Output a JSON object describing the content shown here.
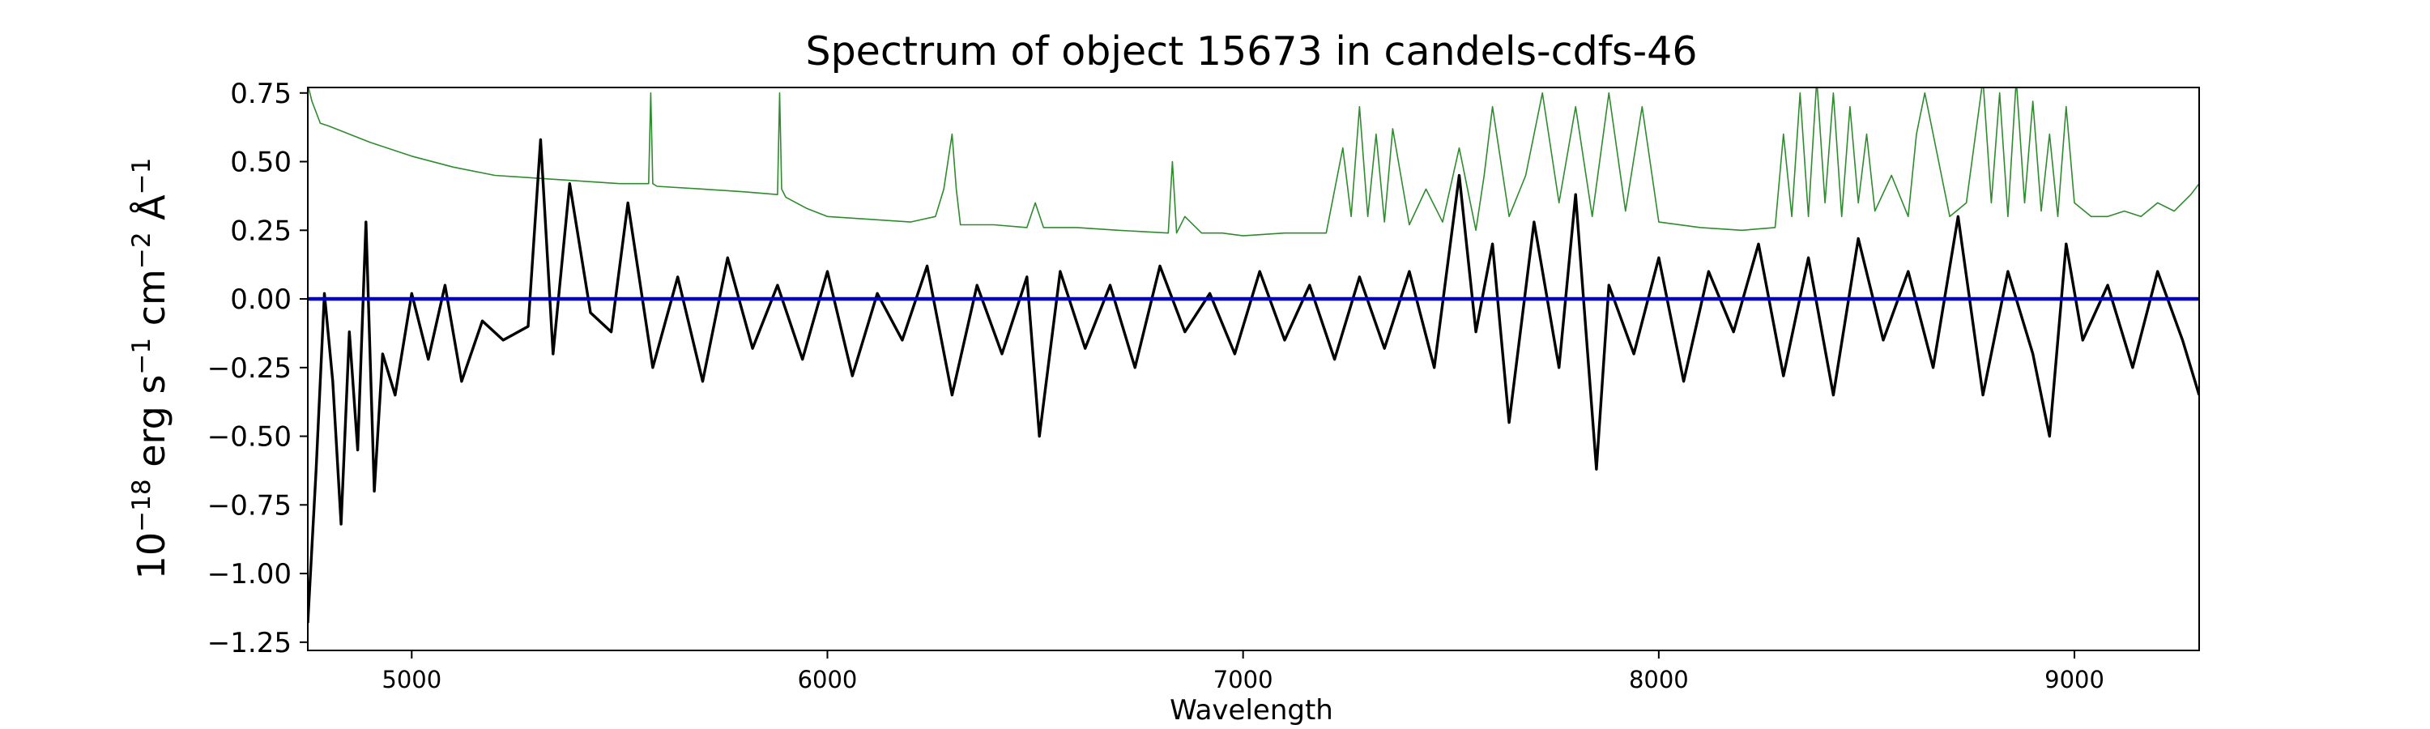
{
  "chart_data": {
    "type": "line",
    "title": "Spectrum of object 15673 in candels-cdfs-46",
    "xlabel": "Wavelength",
    "ylabel": {
      "base": "10",
      "exponent": "−18",
      "units": " erg s",
      "s_exp": "−1",
      "cm": " cm",
      "cm_exp": "−2",
      "angstrom": " Å",
      "a_exp": "−1"
    },
    "xlim": [
      4750,
      9300
    ],
    "ylim": [
      -1.28,
      0.77
    ],
    "xticks": [
      5000,
      6000,
      7000,
      8000,
      9000
    ],
    "xtick_labels": [
      "5000",
      "6000",
      "7000",
      "8000",
      "9000"
    ],
    "yticks": [
      -1.25,
      -1.0,
      -0.75,
      -0.5,
      -0.25,
      0.0,
      0.25,
      0.5,
      0.75
    ],
    "ytick_labels": [
      "−1.25",
      "−1.00",
      "−0.75",
      "−0.50",
      "−0.25",
      "0.00",
      "0.25",
      "0.50",
      "0.75"
    ],
    "grid": false,
    "colors": {
      "flux": "#000000",
      "error": "#2e8b2e",
      "zero": "#0000cc"
    },
    "series": [
      {
        "x": [
          4750,
          4770,
          4790,
          4810,
          4830,
          4850,
          4870,
          4890,
          4910,
          4930,
          4960,
          5000,
          5040,
          5080,
          5120,
          5170,
          5220,
          5280,
          5310,
          5340,
          5380,
          5430,
          5480,
          5520,
          5580,
          5640,
          5700,
          5760,
          5820,
          5880,
          5940,
          6000,
          6060,
          6120,
          6180,
          6240,
          6300,
          6360,
          6420,
          6480,
          6510,
          6560,
          6620,
          6680,
          6740,
          6800,
          6860,
          6920,
          6980,
          7040,
          7100,
          7160,
          7220,
          7280,
          7340,
          7400,
          7460,
          7520,
          7560,
          7600,
          7640,
          7700,
          7760,
          7800,
          7850,
          7880,
          7940,
          8000,
          8060,
          8120,
          8180,
          8240,
          8300,
          8360,
          8420,
          8480,
          8540,
          8600,
          8660,
          8720,
          8780,
          8840,
          8900,
          8940,
          8980,
          9020,
          9080,
          9140,
          9200,
          9260,
          9300
        ],
        "y": [
          -1.18,
          -0.62,
          0.02,
          -0.3,
          -0.82,
          -0.12,
          -0.55,
          0.28,
          -0.7,
          -0.2,
          -0.35,
          0.02,
          -0.22,
          0.05,
          -0.3,
          -0.08,
          -0.15,
          -0.1,
          0.58,
          -0.2,
          0.42,
          -0.05,
          -0.12,
          0.35,
          -0.25,
          0.08,
          -0.3,
          0.15,
          -0.18,
          0.05,
          -0.22,
          0.1,
          -0.28,
          0.02,
          -0.15,
          0.12,
          -0.35,
          0.05,
          -0.2,
          0.08,
          -0.5,
          0.1,
          -0.18,
          0.05,
          -0.25,
          0.12,
          -0.12,
          0.02,
          -0.2,
          0.1,
          -0.15,
          0.05,
          -0.22,
          0.08,
          -0.18,
          0.1,
          -0.25,
          0.45,
          -0.12,
          0.2,
          -0.45,
          0.28,
          -0.25,
          0.38,
          -0.62,
          0.05,
          -0.2,
          0.15,
          -0.3,
          0.1,
          -0.12,
          0.2,
          -0.28,
          0.15,
          -0.35,
          0.22,
          -0.15,
          0.1,
          -0.25,
          0.3,
          -0.35,
          0.1,
          -0.2,
          -0.5,
          0.2,
          -0.15,
          0.05,
          -0.25,
          0.1,
          -0.15,
          -0.35
        ]
      },
      {
        "x": [
          4750,
          4760,
          4780,
          4800,
          4900,
          5000,
          5100,
          5200,
          5300,
          5400,
          5500,
          5570,
          5575,
          5580,
          5590,
          5700,
          5800,
          5880,
          5885,
          5890,
          5900,
          5950,
          6000,
          6100,
          6200,
          6260,
          6280,
          6300,
          6310,
          6320,
          6400,
          6480,
          6500,
          6520,
          6600,
          6700,
          6820,
          6830,
          6840,
          6860,
          6900,
          6950,
          7000,
          7100,
          7200,
          7240,
          7260,
          7280,
          7300,
          7320,
          7340,
          7360,
          7400,
          7440,
          7480,
          7520,
          7560,
          7580,
          7600,
          7640,
          7680,
          7720,
          7760,
          7800,
          7840,
          7880,
          7920,
          7960,
          8000,
          8100,
          8200,
          8280,
          8300,
          8320,
          8340,
          8360,
          8380,
          8400,
          8420,
          8440,
          8460,
          8480,
          8500,
          8520,
          8560,
          8600,
          8620,
          8640,
          8660,
          8700,
          8740,
          8780,
          8800,
          8820,
          8840,
          8860,
          8880,
          8900,
          8920,
          8940,
          8960,
          8980,
          9000,
          9040,
          9080,
          9120,
          9160,
          9200,
          9240,
          9280,
          9300
        ],
        "y": [
          0.78,
          0.72,
          0.64,
          0.63,
          0.57,
          0.52,
          0.48,
          0.45,
          0.44,
          0.43,
          0.42,
          0.42,
          0.75,
          0.42,
          0.41,
          0.4,
          0.39,
          0.38,
          0.75,
          0.4,
          0.37,
          0.33,
          0.3,
          0.29,
          0.28,
          0.3,
          0.4,
          0.6,
          0.4,
          0.27,
          0.27,
          0.26,
          0.35,
          0.26,
          0.26,
          0.25,
          0.24,
          0.5,
          0.24,
          0.3,
          0.24,
          0.24,
          0.23,
          0.24,
          0.24,
          0.55,
          0.3,
          0.7,
          0.3,
          0.6,
          0.28,
          0.62,
          0.27,
          0.4,
          0.28,
          0.55,
          0.25,
          0.45,
          0.7,
          0.3,
          0.45,
          0.75,
          0.35,
          0.7,
          0.3,
          0.75,
          0.32,
          0.7,
          0.28,
          0.26,
          0.25,
          0.26,
          0.6,
          0.3,
          0.75,
          0.3,
          0.8,
          0.35,
          0.75,
          0.3,
          0.7,
          0.35,
          0.6,
          0.32,
          0.45,
          0.3,
          0.6,
          0.75,
          0.6,
          0.3,
          0.35,
          0.8,
          0.35,
          0.75,
          0.3,
          0.8,
          0.35,
          0.72,
          0.32,
          0.6,
          0.3,
          0.7,
          0.35,
          0.3,
          0.3,
          0.32,
          0.3,
          0.35,
          0.32,
          0.38,
          0.42
        ]
      },
      {
        "x": [
          4750,
          9300
        ],
        "y": [
          0.0,
          0.0
        ]
      }
    ]
  }
}
